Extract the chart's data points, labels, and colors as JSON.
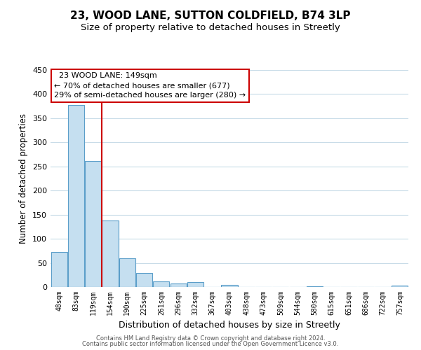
{
  "title": "23, WOOD LANE, SUTTON COLDFIELD, B74 3LP",
  "subtitle": "Size of property relative to detached houses in Streetly",
  "xlabel": "Distribution of detached houses by size in Streetly",
  "ylabel": "Number of detached properties",
  "bar_labels": [
    "48sqm",
    "83sqm",
    "119sqm",
    "154sqm",
    "190sqm",
    "225sqm",
    "261sqm",
    "296sqm",
    "332sqm",
    "367sqm",
    "403sqm",
    "438sqm",
    "473sqm",
    "509sqm",
    "544sqm",
    "580sqm",
    "615sqm",
    "651sqm",
    "686sqm",
    "722sqm",
    "757sqm"
  ],
  "bar_values": [
    72,
    378,
    262,
    138,
    60,
    29,
    11,
    7,
    10,
    0,
    4,
    0,
    0,
    0,
    0,
    2,
    0,
    0,
    0,
    0,
    3
  ],
  "bar_color": "#c5dff0",
  "bar_edge_color": "#5b9ec9",
  "ylim": [
    0,
    450
  ],
  "yticks": [
    0,
    50,
    100,
    150,
    200,
    250,
    300,
    350,
    400,
    450
  ],
  "vline_color": "#cc0000",
  "vline_x_index": 2.5,
  "annotation_title": "23 WOOD LANE: 149sqm",
  "annotation_line1": "← 70% of detached houses are smaller (677)",
  "annotation_line2": "29% of semi-detached houses are larger (280) →",
  "footer1": "Contains HM Land Registry data © Crown copyright and database right 2024.",
  "footer2": "Contains public sector information licensed under the Open Government Licence v3.0.",
  "background_color": "#ffffff",
  "grid_color": "#c8dce8",
  "title_fontsize": 11,
  "subtitle_fontsize": 9.5,
  "ylabel_fontsize": 8.5,
  "xlabel_fontsize": 9
}
